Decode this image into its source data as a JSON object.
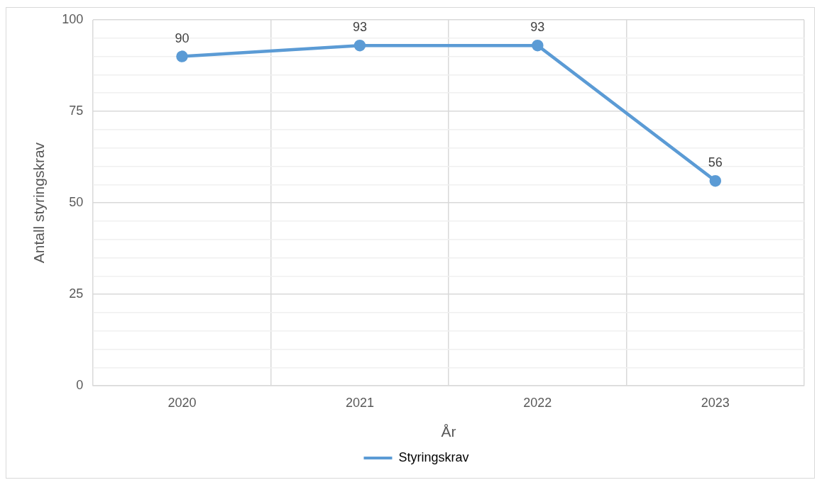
{
  "chart_data": {
    "type": "line",
    "xlabel": "År",
    "ylabel": "Antall styringskrav",
    "categories": [
      "2020",
      "2021",
      "2022",
      "2023"
    ],
    "series": [
      {
        "name": "Styringskrav",
        "color": "#5b9bd5",
        "values": [
          90,
          93,
          93,
          56
        ]
      }
    ],
    "ylim": [
      0,
      100
    ],
    "yticks": [
      0,
      {
        "value": 5,
        "label": null
      },
      {
        "value": 10,
        "label": null
      },
      {
        "value": 15,
        "label": null
      },
      {
        "value": 20,
        "label": null
      },
      25,
      {
        "value": 30,
        "label": null
      },
      {
        "value": 35,
        "label": null
      },
      {
        "value": 40,
        "label": null
      },
      {
        "value": 45,
        "label": null
      },
      50,
      {
        "value": 55,
        "label": null
      },
      {
        "value": 60,
        "label": null
      },
      {
        "value": 65,
        "label": null
      },
      {
        "value": 70,
        "label": null
      },
      75,
      {
        "value": 80,
        "label": null
      },
      {
        "value": 85,
        "label": null
      },
      {
        "value": 90,
        "label": null
      },
      {
        "value": 95,
        "label": null
      },
      100
    ],
    "grid": true,
    "legend": "bottom",
    "marker": "circle",
    "line_style": "solid",
    "data_labels": true
  }
}
